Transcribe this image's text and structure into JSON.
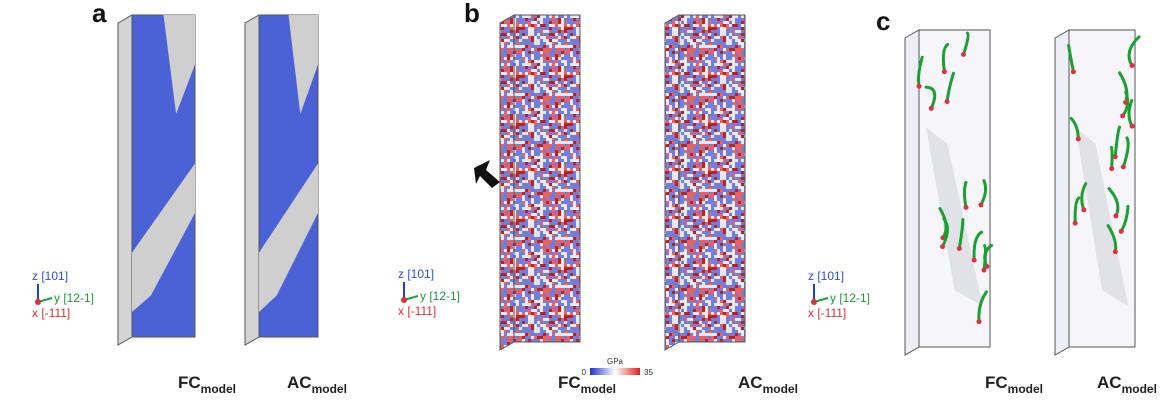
{
  "panels": [
    {
      "label": "a",
      "axes": {
        "z": "z [101]",
        "y": "y [12-1]",
        "x": "x [-111]"
      },
      "models": [
        {
          "name": "FC",
          "subscript": "model"
        },
        {
          "name": "AC",
          "subscript": "model"
        }
      ]
    },
    {
      "label": "b",
      "axes": {
        "z": "z [101]",
        "y": "y [12-1]",
        "x": "x [-111]"
      },
      "models": [
        {
          "name": "FC",
          "subscript": "model"
        },
        {
          "name": "AC",
          "subscript": "model"
        }
      ]
    },
    {
      "label": "c",
      "axes": {
        "z": "z [101]",
        "y": "y [12-1]",
        "x": "x [-111]"
      },
      "models": [
        {
          "name": "FC",
          "subscript": "model"
        },
        {
          "name": "AC",
          "subscript": "model"
        }
      ]
    }
  ],
  "colorbar": {
    "unit": "GPa",
    "min": 0,
    "max": 35
  }
}
